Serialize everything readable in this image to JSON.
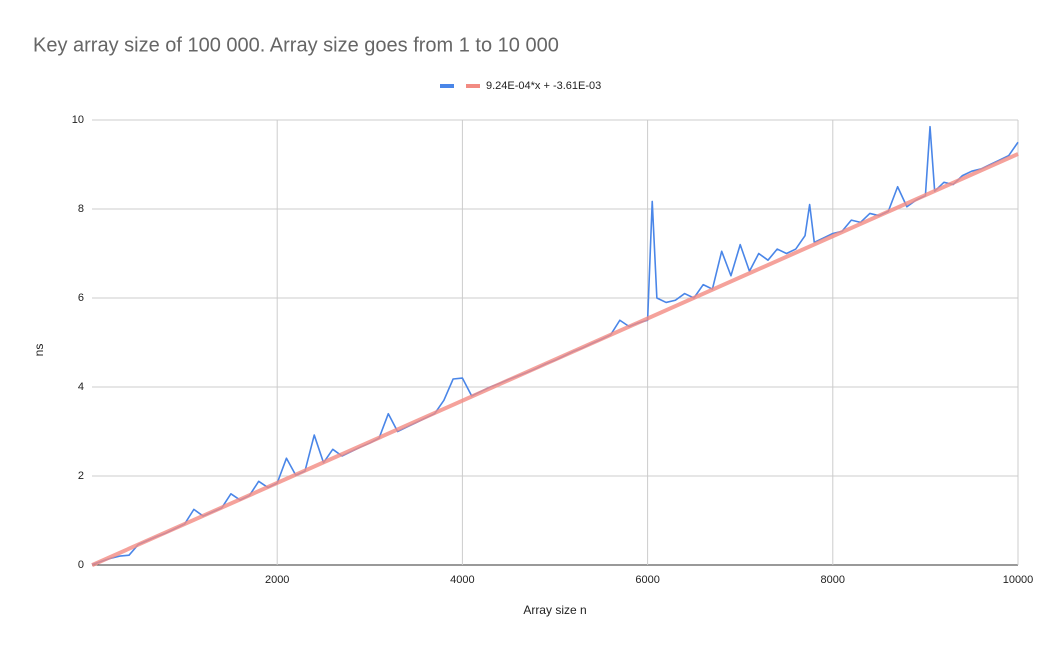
{
  "chart_data": {
    "type": "line",
    "title": "Key array size of 100 000. Array size goes from 1 to 10 000",
    "x_label": "Array size n",
    "y_label": "ns",
    "xlim": [
      0,
      10000
    ],
    "xticks": [
      2000,
      4000,
      6000,
      8000,
      10000
    ],
    "ylim": [
      0,
      10
    ],
    "yticks": [
      0,
      2,
      4,
      6,
      8,
      10
    ],
    "grid": true,
    "legend": "top",
    "series": [
      {
        "color": "#4a86e8",
        "x": [
          1,
          100,
          200,
          300,
          400,
          500,
          600,
          700,
          800,
          900,
          1000,
          1100,
          1200,
          1300,
          1400,
          1500,
          1600,
          1700,
          1800,
          1900,
          2000,
          2100,
          2200,
          2300,
          2400,
          2500,
          2600,
          2700,
          2800,
          2900,
          3000,
          3100,
          3200,
          3300,
          3400,
          3500,
          3600,
          3700,
          3800,
          3900,
          4000,
          4100,
          4200,
          4300,
          4400,
          4500,
          4600,
          4700,
          4800,
          4900,
          5000,
          5100,
          5200,
          5300,
          5400,
          5500,
          5600,
          5700,
          5800,
          5900,
          6000,
          6050,
          6100,
          6200,
          6300,
          6400,
          6500,
          6600,
          6700,
          6800,
          6900,
          7000,
          7100,
          7200,
          7300,
          7400,
          7500,
          7600,
          7700,
          7750,
          7800,
          7900,
          8000,
          8100,
          8200,
          8300,
          8400,
          8500,
          8600,
          8700,
          8800,
          8900,
          9000,
          9050,
          9100,
          9200,
          9300,
          9400,
          9500,
          9600,
          9700,
          9800,
          9900,
          10000
        ],
        "values": [
          0.01,
          0.08,
          0.15,
          0.2,
          0.22,
          0.46,
          0.55,
          0.64,
          0.72,
          0.82,
          0.92,
          1.25,
          1.1,
          1.19,
          1.28,
          1.6,
          1.46,
          1.56,
          1.88,
          1.74,
          1.84,
          2.4,
          2.02,
          2.11,
          2.92,
          2.3,
          2.6,
          2.45,
          2.55,
          2.65,
          2.74,
          2.85,
          3.4,
          3.0,
          3.1,
          3.2,
          3.3,
          3.4,
          3.7,
          4.18,
          4.2,
          3.8,
          3.9,
          4.0,
          4.08,
          4.17,
          4.25,
          4.33,
          4.42,
          4.52,
          4.6,
          4.7,
          4.8,
          4.88,
          4.98,
          5.07,
          5.17,
          5.5,
          5.36,
          5.44,
          5.5,
          8.17,
          6.0,
          5.9,
          5.95,
          6.1,
          6.0,
          6.3,
          6.2,
          7.05,
          6.5,
          7.2,
          6.6,
          7.0,
          6.85,
          7.1,
          7.0,
          7.1,
          7.4,
          8.1,
          7.25,
          7.35,
          7.45,
          7.5,
          7.75,
          7.7,
          7.9,
          7.85,
          7.95,
          8.5,
          8.05,
          8.2,
          8.3,
          9.85,
          8.4,
          8.6,
          8.55,
          8.75,
          8.85,
          8.9,
          9.0,
          9.1,
          9.2,
          9.5
        ]
      },
      {
        "name": "9.24E-04*x + -3.61E-03",
        "color": "#f28b82",
        "x": [
          1,
          10000
        ],
        "values": [
          -0.0027,
          9.2364
        ]
      }
    ]
  }
}
